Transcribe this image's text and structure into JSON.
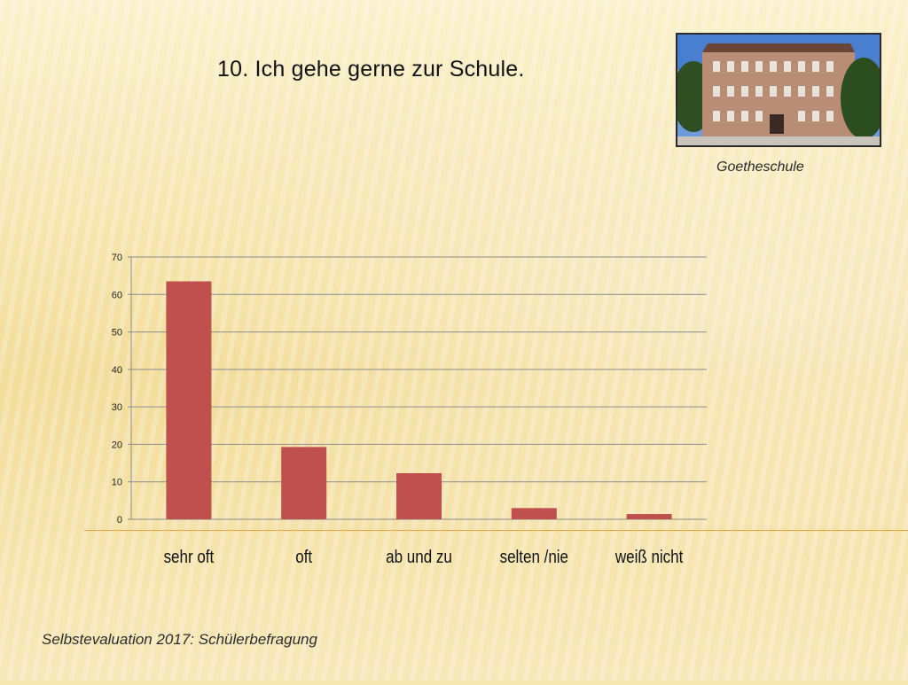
{
  "slide": {
    "title": "10. Ich gehe gerne zur Schule.",
    "photo_caption": "Goetheschule",
    "footer": "Selbstevaluation 2017: Schülerbefragung"
  },
  "colors": {
    "bar": "#c0504d",
    "gridline": "#8c8c8c",
    "footer_line": "#e8a13a"
  },
  "chart_data": {
    "type": "bar",
    "categories": [
      "sehr oft",
      "oft",
      "ab und zu",
      "selten /nie",
      "weiß nicht"
    ],
    "values": [
      63.5,
      19.3,
      12.3,
      3.0,
      1.4
    ],
    "title": "",
    "xlabel": "",
    "ylabel": "",
    "ylim": [
      0,
      70
    ],
    "yticks": [
      0,
      10,
      20,
      30,
      40,
      50,
      60,
      70
    ],
    "grid": true,
    "legend": "none"
  }
}
